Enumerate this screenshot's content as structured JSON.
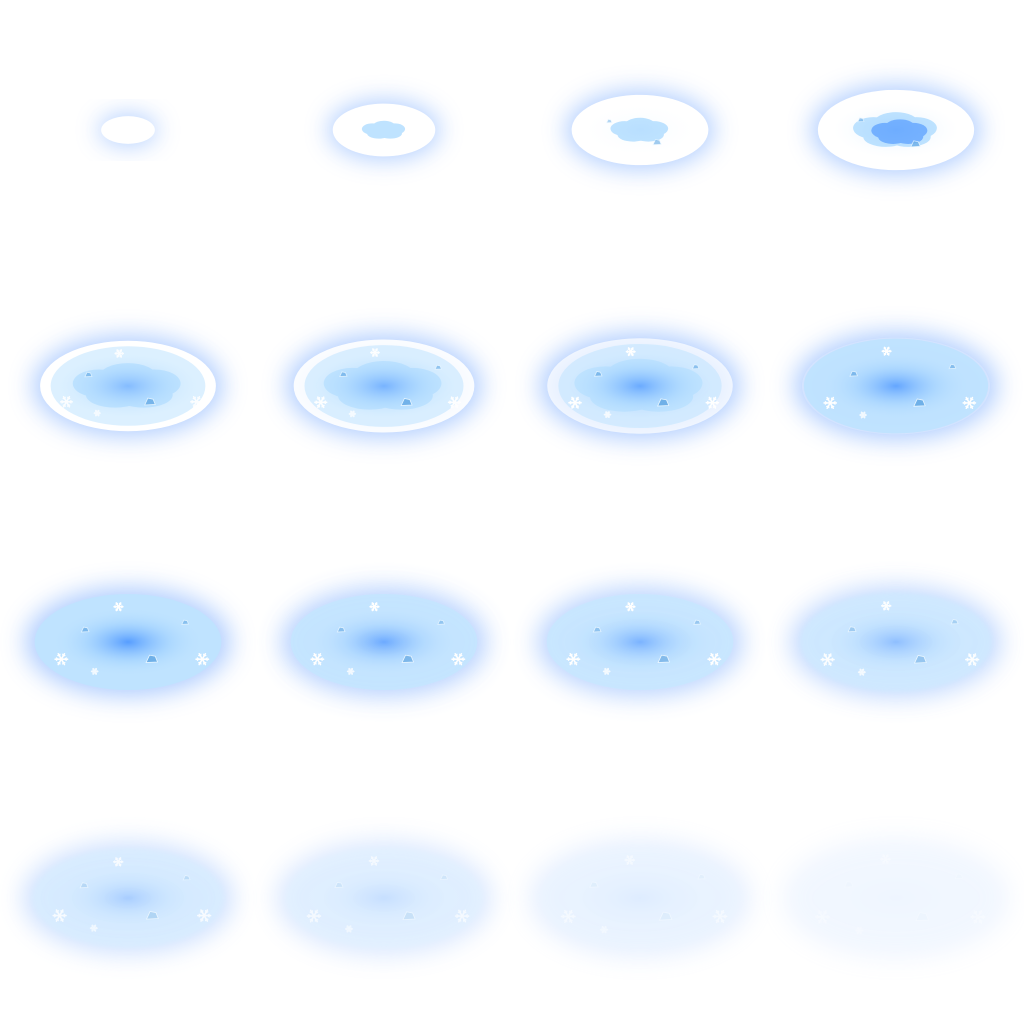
{
  "sprite_sheet": {
    "rows": 4,
    "columns": 4,
    "frame_count": 16,
    "colors": {
      "background": "#ffffff",
      "glow": "#a9c9ff",
      "rim": "#ffffff",
      "ice_light": "#bfe3ff",
      "ice_mid": "#8fc7ff",
      "ice_core": "#3d8cff",
      "crystal": "#6fb0e8"
    },
    "icons": [
      "snowflake-icon",
      "ice-crystal-icon"
    ],
    "frames": [
      {
        "index": 1,
        "phase": "form",
        "rim": 1.0,
        "fill": 0.0,
        "core": 0.0,
        "opacity": 1.0,
        "size": 0.22
      },
      {
        "index": 2,
        "phase": "form",
        "rim": 1.0,
        "fill": 0.35,
        "core": 0.0,
        "opacity": 1.0,
        "size": 0.42
      },
      {
        "index": 3,
        "phase": "form",
        "rim": 1.0,
        "fill": 0.55,
        "core": 0.05,
        "opacity": 1.0,
        "size": 0.56
      },
      {
        "index": 4,
        "phase": "form",
        "rim": 1.0,
        "fill": 0.7,
        "core": 0.15,
        "opacity": 1.0,
        "size": 0.64
      },
      {
        "index": 5,
        "phase": "grow",
        "rim": 1.0,
        "fill": 0.8,
        "core": 0.45,
        "opacity": 1.0,
        "size": 0.72
      },
      {
        "index": 6,
        "phase": "grow",
        "rim": 0.9,
        "fill": 0.85,
        "core": 0.55,
        "opacity": 1.0,
        "size": 0.74
      },
      {
        "index": 7,
        "phase": "grow",
        "rim": 0.7,
        "fill": 0.9,
        "core": 0.65,
        "opacity": 1.0,
        "size": 0.76
      },
      {
        "index": 8,
        "phase": "grow",
        "rim": 0.2,
        "fill": 0.95,
        "core": 0.7,
        "opacity": 1.0,
        "size": 0.77
      },
      {
        "index": 9,
        "phase": "hold",
        "rim": 0.0,
        "fill": 1.0,
        "core": 0.8,
        "opacity": 1.0,
        "size": 0.78
      },
      {
        "index": 10,
        "phase": "hold",
        "rim": 0.0,
        "fill": 0.95,
        "core": 0.75,
        "opacity": 0.9,
        "size": 0.78
      },
      {
        "index": 11,
        "phase": "hold",
        "rim": 0.0,
        "fill": 0.9,
        "core": 0.7,
        "opacity": 0.85,
        "size": 0.78
      },
      {
        "index": 12,
        "phase": "hold",
        "rim": 0.0,
        "fill": 0.85,
        "core": 0.65,
        "opacity": 0.75,
        "size": 0.8
      },
      {
        "index": 13,
        "phase": "fade",
        "rim": 0.0,
        "fill": 0.7,
        "core": 0.6,
        "opacity": 0.6,
        "size": 0.8
      },
      {
        "index": 14,
        "phase": "fade",
        "rim": 0.0,
        "fill": 0.55,
        "core": 0.45,
        "opacity": 0.45,
        "size": 0.82
      },
      {
        "index": 15,
        "phase": "fade",
        "rim": 0.0,
        "fill": 0.4,
        "core": 0.3,
        "opacity": 0.3,
        "size": 0.84
      },
      {
        "index": 16,
        "phase": "fade",
        "rim": 0.0,
        "fill": 0.2,
        "core": 0.15,
        "opacity": 0.18,
        "size": 0.86
      }
    ]
  }
}
